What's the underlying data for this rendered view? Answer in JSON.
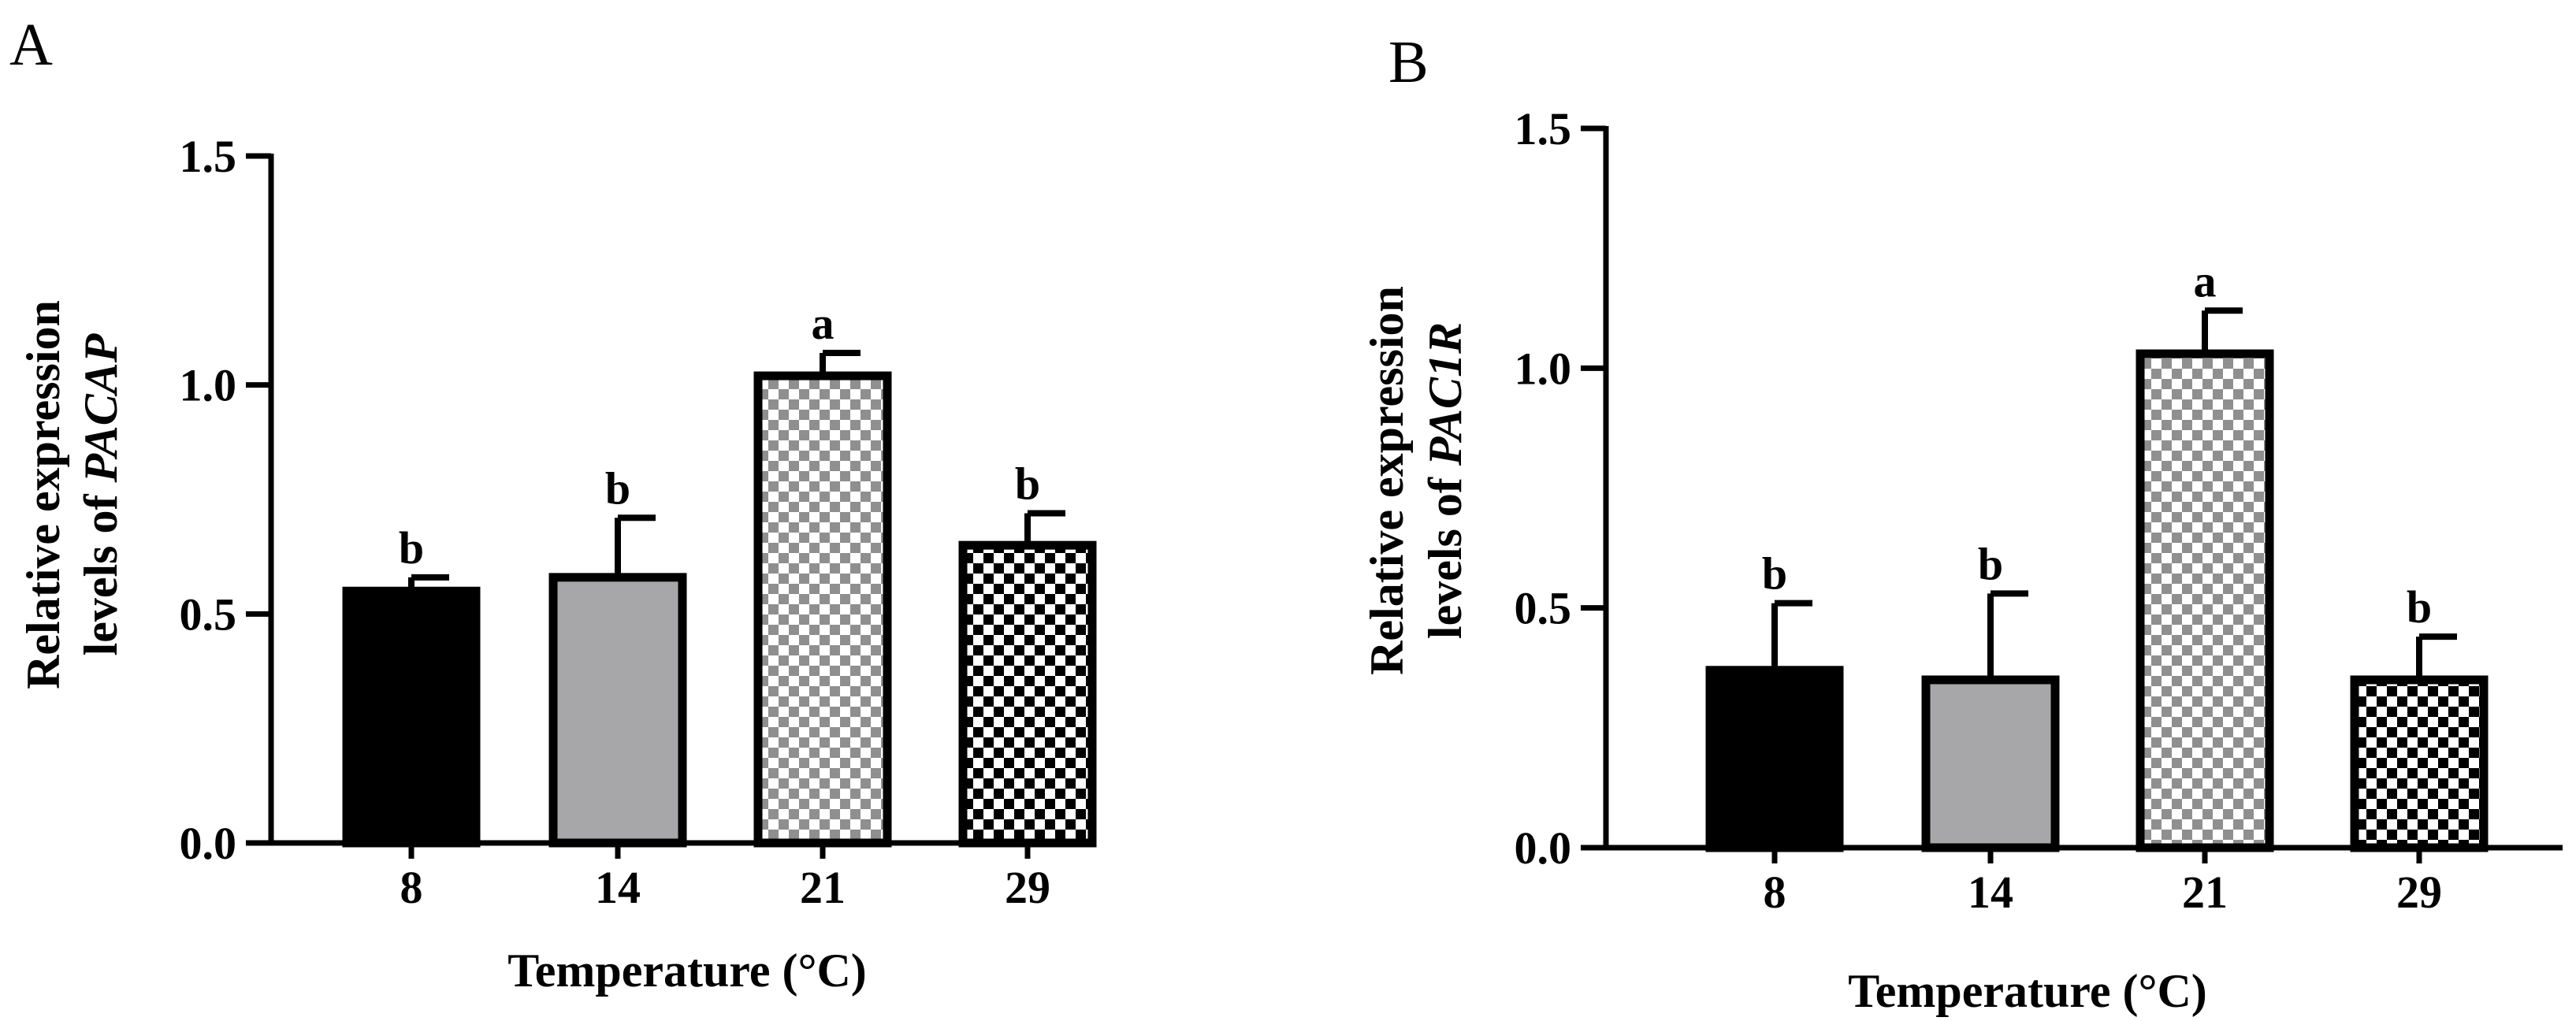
{
  "chart_data": [
    {
      "panel_label": "A",
      "type": "bar",
      "categories": [
        "8",
        "14",
        "21",
        "29"
      ],
      "values": [
        0.55,
        0.58,
        1.02,
        0.65
      ],
      "errors": [
        0.03,
        0.13,
        0.05,
        0.07
      ],
      "significance": [
        "b",
        "b",
        "a",
        "b"
      ],
      "fills": [
        "solid-black",
        "solid-gray",
        "light-checker",
        "dark-checker"
      ],
      "colors": {
        "black": "#000000",
        "gray": "#a7a7a9",
        "light_check": "#8f8f8f",
        "dark_check": "#000000"
      },
      "title": "",
      "xlabel": "Temperature (°C)",
      "ylabel_line1": "Relative expression",
      "ylabel_line2_prefix": "levels of ",
      "ylabel_gene": "PACAP",
      "ylim": [
        0,
        1.5
      ],
      "yticks": [
        "0.0",
        "0.5",
        "1.0",
        "1.5"
      ],
      "grid": false
    },
    {
      "panel_label": "B",
      "type": "bar",
      "categories": [
        "8",
        "14",
        "21",
        "29"
      ],
      "values": [
        0.37,
        0.35,
        1.03,
        0.35
      ],
      "errors": [
        0.14,
        0.18,
        0.09,
        0.09
      ],
      "significance": [
        "b",
        "b",
        "a",
        "b"
      ],
      "fills": [
        "solid-black",
        "solid-gray",
        "light-checker",
        "dark-checker"
      ],
      "colors": {
        "black": "#000000",
        "gray": "#a7a7a9",
        "light_check": "#8f8f8f",
        "dark_check": "#000000"
      },
      "title": "",
      "xlabel": "Temperature (°C)",
      "ylabel_line1": "Relative expression",
      "ylabel_line2_prefix": "levels of ",
      "ylabel_gene": "PAC1R",
      "ylim": [
        0,
        1.5
      ],
      "yticks": [
        "0.0",
        "0.5",
        "1.0",
        "1.5"
      ],
      "grid": false
    }
  ]
}
